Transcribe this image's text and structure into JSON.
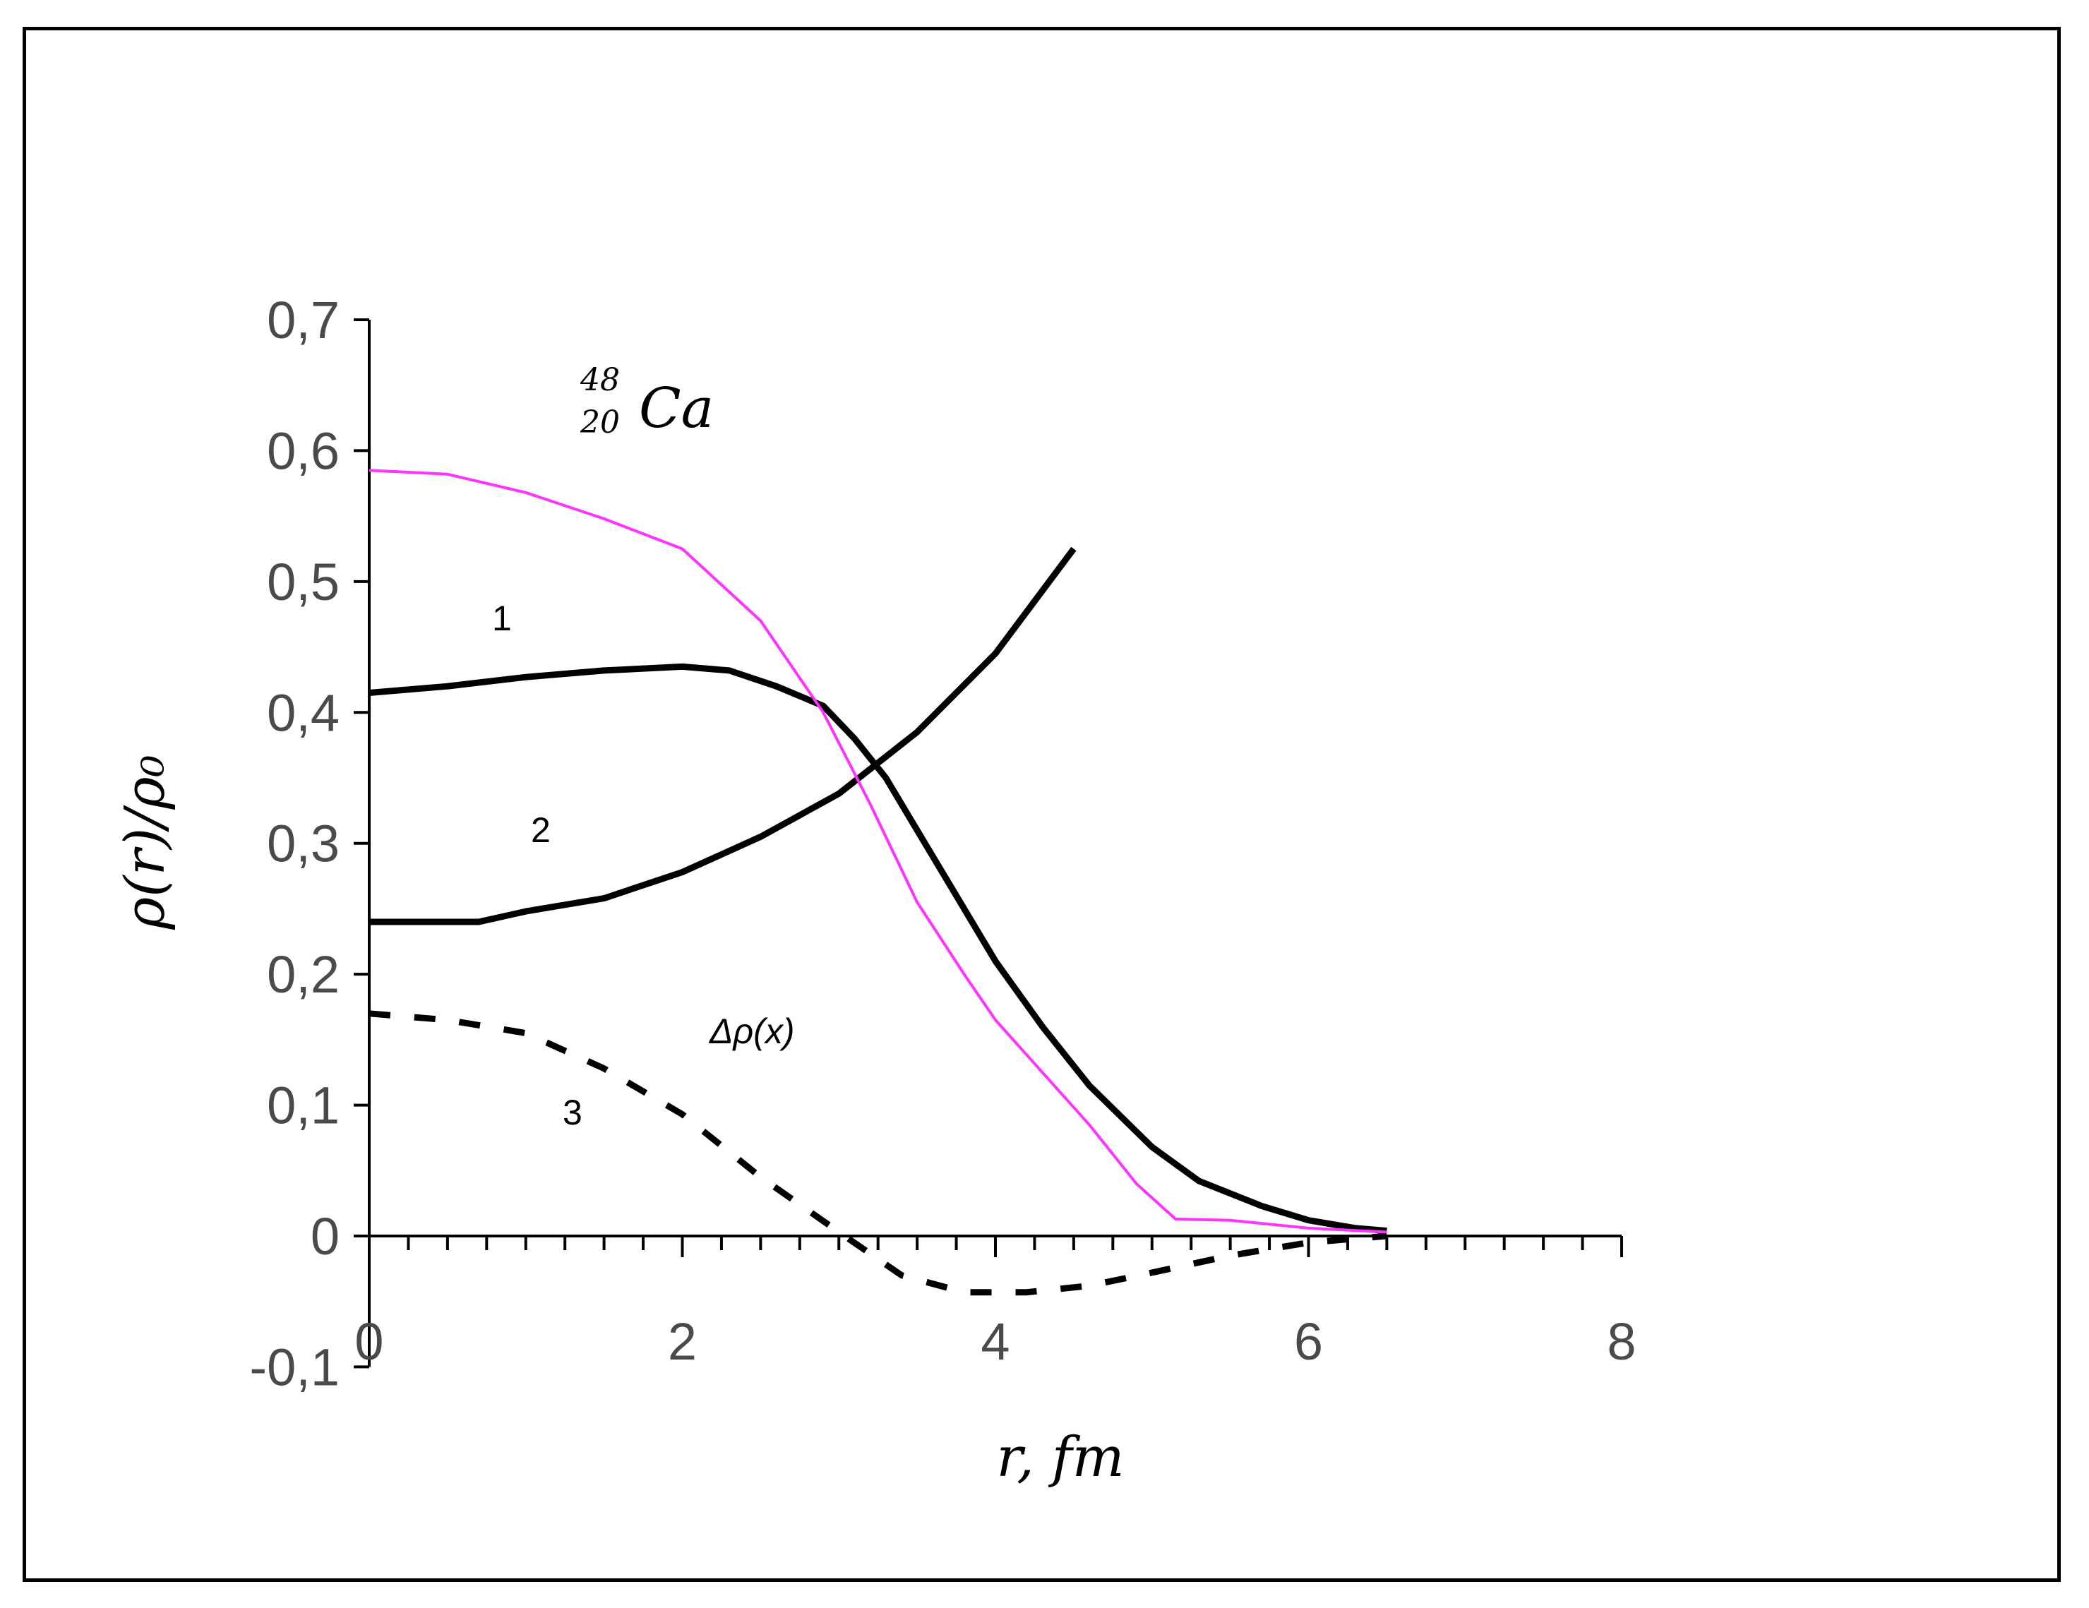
{
  "chart_data": {
    "type": "line",
    "xlabel": "r, fm",
    "ylabel": "ρ(r)/ρ₀",
    "xlim": [
      0,
      8
    ],
    "ylim": [
      -0.1,
      0.7
    ],
    "x_ticks": [
      0,
      2,
      4,
      6,
      8
    ],
    "x_tick_labels": [
      "0",
      "2",
      "4",
      "6",
      "8"
    ],
    "y_ticks": [
      -0.1,
      0,
      0.1,
      0.2,
      0.3,
      0.4,
      0.5,
      0.6,
      0.7
    ],
    "y_tick_labels": [
      "-0,1",
      "0",
      "0,1",
      "0,2",
      "0,3",
      "0,4",
      "0,5",
      "0,6",
      "0,7"
    ],
    "grid": false,
    "annotations": {
      "nuclide_mass": "48",
      "nuclide_charge": "20",
      "nuclide_symbol": "Ca",
      "delta": "Δρ(x)"
    },
    "series": [
      {
        "label": "1",
        "color": "#000000",
        "style": "solid",
        "x": [
          0,
          0.5,
          1.0,
          1.5,
          2.0,
          2.3,
          2.6,
          2.9,
          3.1,
          3.3,
          3.5,
          3.8,
          4.0,
          4.3,
          4.6,
          5.0,
          5.3,
          5.7,
          6.0,
          6.3,
          6.5
        ],
        "y": [
          0.415,
          0.42,
          0.427,
          0.432,
          0.435,
          0.432,
          0.42,
          0.405,
          0.38,
          0.35,
          0.31,
          0.25,
          0.21,
          0.16,
          0.115,
          0.068,
          0.042,
          0.023,
          0.012,
          0.006,
          0.004
        ]
      },
      {
        "label": "2",
        "color": "#000000",
        "style": "solid",
        "x": [
          0,
          0.7,
          1.0,
          1.5,
          2.0,
          2.5,
          3.0,
          3.5,
          4.0,
          4.5
        ],
        "y": [
          0.24,
          0.24,
          0.248,
          0.258,
          0.278,
          0.305,
          0.338,
          0.385,
          0.445,
          0.525
        ]
      },
      {
        "label": "3",
        "color": "#000000",
        "style": "dashed",
        "x": [
          0,
          0.5,
          1.0,
          1.5,
          2.0,
          2.5,
          3.0,
          3.4,
          3.8,
          4.2,
          4.6,
          5.0,
          5.5,
          6.0,
          6.5
        ],
        "y": [
          0.17,
          0.165,
          0.155,
          0.128,
          0.093,
          0.045,
          0.003,
          -0.03,
          -0.043,
          -0.043,
          -0.038,
          -0.028,
          -0.015,
          -0.005,
          0.0
        ]
      },
      {
        "label": "",
        "color": "#ff33ff",
        "style": "solid",
        "x": [
          0,
          0.5,
          1.0,
          1.5,
          2.0,
          2.5,
          2.9,
          3.2,
          3.5,
          3.8,
          4.0,
          4.3,
          4.6,
          4.9,
          5.15,
          5.5,
          6.0,
          6.5
        ],
        "y": [
          0.585,
          0.582,
          0.568,
          0.548,
          0.525,
          0.47,
          0.4,
          0.33,
          0.255,
          0.2,
          0.165,
          0.125,
          0.085,
          0.04,
          0.013,
          0.012,
          0.006,
          0.003
        ]
      }
    ]
  }
}
